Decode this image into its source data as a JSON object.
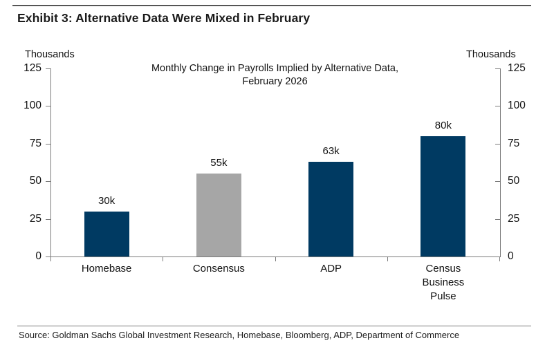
{
  "header": {
    "title": "Exhibit 3: Alternative Data Were Mixed in February"
  },
  "footer": {
    "source": "Source: Goldman Sachs Global Investment Research, Homebase, Bloomberg, ADP, Department of Commerce"
  },
  "chart_data": {
    "type": "bar",
    "title": "Monthly Change in Payrolls Implied by Alternative Data,\nFebruary 2026",
    "axis_label_left": "Thousands",
    "axis_label_right": "Thousands",
    "categories": [
      "Homebase",
      "Consensus",
      "ADP",
      "Census Business Pulse"
    ],
    "values": [
      30,
      55,
      63,
      80
    ],
    "value_labels": [
      "30k",
      "55k",
      "63k",
      "80k"
    ],
    "bar_colors": [
      "#003A62",
      "#A6A6A6",
      "#003A62",
      "#003A62"
    ],
    "yticks": [
      0,
      25,
      50,
      75,
      100,
      125
    ],
    "ylim": [
      0,
      125
    ],
    "grid": false,
    "legend_position": "none",
    "colors": {
      "navy": "#003A62",
      "gray": "#A6A6A6",
      "axis": "#7a7a7a"
    }
  }
}
